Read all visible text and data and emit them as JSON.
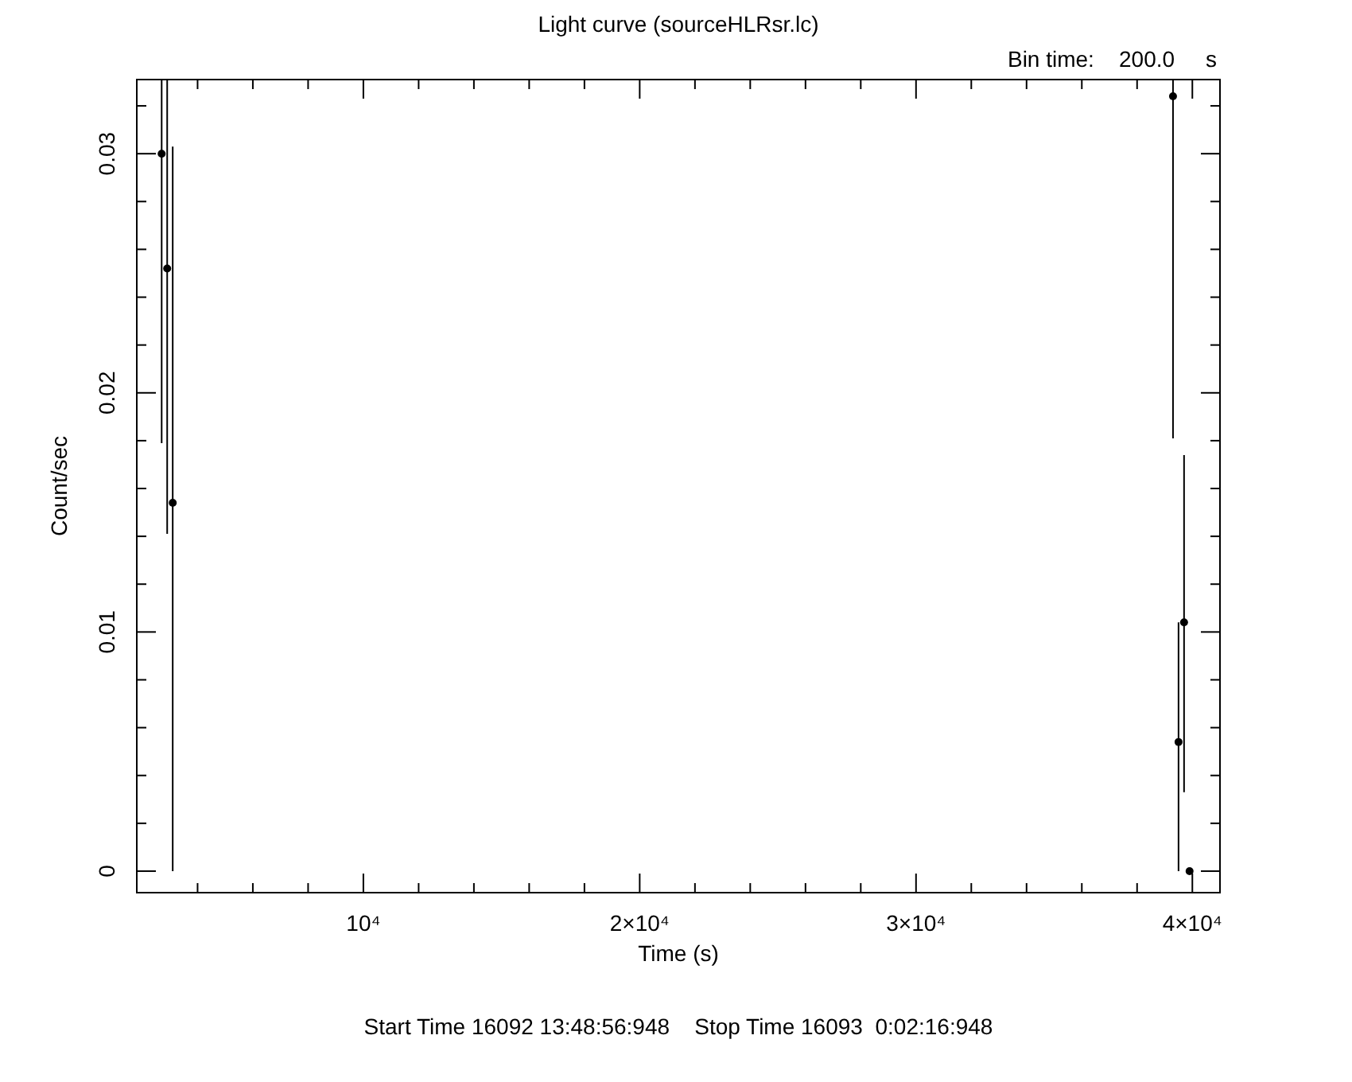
{
  "chart_data": {
    "type": "scatter",
    "title": "Light curve (sourceHLRsr.lc)",
    "xlabel": "Time (s)",
    "ylabel": "Count/sec",
    "annotations": [
      "Bin time:    200.0     s",
      "Start Time 16092 13:48:56:948    Stop Time 16093  0:02:16:948"
    ],
    "x": [
      2700,
      2900,
      3100,
      39300,
      39500,
      39700,
      39900
    ],
    "values": [
      0.03,
      0.0252,
      0.0154,
      0.0324,
      0.0054,
      0.0104,
      0
    ],
    "errors": [
      [
        0.0179,
        0.0331
      ],
      [
        0.0141,
        0.0331
      ],
      [
        0,
        0.0303
      ],
      [
        0.0181,
        0.0331
      ],
      [
        0,
        0.0104
      ],
      [
        0.0033,
        0.0174
      ],
      0
    ],
    "marker": "circle",
    "grid": false,
    "xlim": [
      1800,
      41000
    ],
    "ylim": [
      -0.0009,
      0.0331
    ],
    "xticks": [
      {
        "value": 4000,
        "label": null
      },
      {
        "value": 6000,
        "label": null
      },
      {
        "value": 8000,
        "label": null
      },
      {
        "value": 10000,
        "label": "10⁴"
      },
      {
        "value": 12000,
        "label": null
      },
      {
        "value": 14000,
        "label": null
      },
      {
        "value": 16000,
        "label": null
      },
      {
        "value": 18000,
        "label": null
      },
      {
        "value": 20000,
        "label": "2×10⁴"
      },
      {
        "value": 22000,
        "label": null
      },
      {
        "value": 24000,
        "label": null
      },
      {
        "value": 26000,
        "label": null
      },
      {
        "value": 28000,
        "label": null
      },
      {
        "value": 30000,
        "label": "3×10⁴"
      },
      {
        "value": 32000,
        "label": null
      },
      {
        "value": 34000,
        "label": null
      },
      {
        "value": 36000,
        "label": null
      },
      {
        "value": 38000,
        "label": null
      },
      {
        "value": 40000,
        "label": "4×10⁴"
      }
    ],
    "yticks": [
      0,
      {
        "value": 0.002,
        "label": null
      },
      {
        "value": 0.004,
        "label": null
      },
      {
        "value": 0.006,
        "label": null
      },
      {
        "value": 0.008,
        "label": null
      },
      0.01,
      {
        "value": 0.012,
        "label": null
      },
      {
        "value": 0.014,
        "label": null
      },
      {
        "value": 0.016,
        "label": null
      },
      {
        "value": 0.018,
        "label": null
      },
      0.02,
      {
        "value": 0.022,
        "label": null
      },
      {
        "value": 0.024,
        "label": null
      },
      {
        "value": 0.026,
        "label": null
      },
      {
        "value": 0.028,
        "label": null
      },
      0.03,
      {
        "value": 0.032,
        "label": null
      }
    ]
  }
}
